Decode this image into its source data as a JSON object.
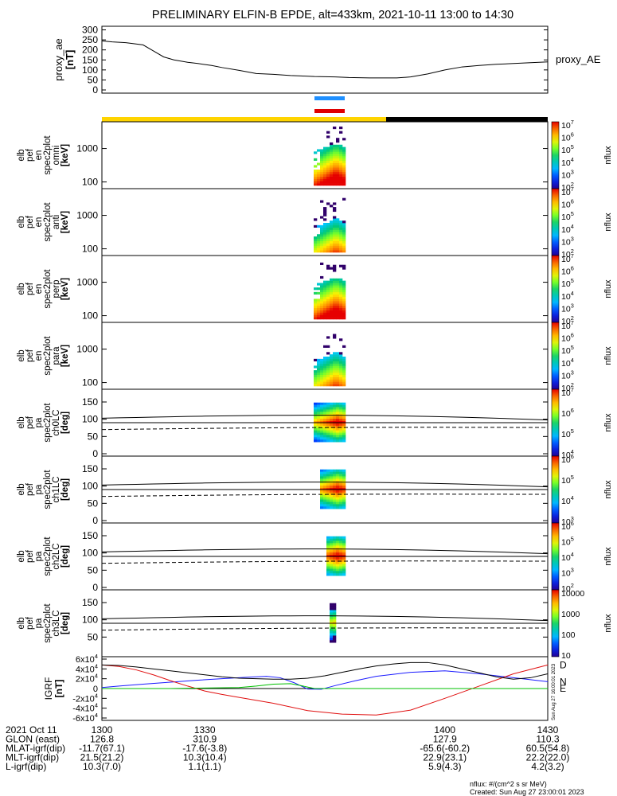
{
  "title": "PRELIMINARY ELFIN-B EPDE, alt=433km, 2021-10-11 13:00 to 14:30",
  "side_label_top": "proxy_AE",
  "colors": {
    "bar_yellow": "#ffd400",
    "bar_black": "#000000",
    "marker_blue": "#1e8fff",
    "marker_red": "#e00000",
    "trace_N": "#1a1aff",
    "trace_D": "#e01010",
    "trace_E": "#00c000"
  },
  "footer": {
    "rows": [
      {
        "label": "2021 Oct 11",
        "values": [
          "1300",
          "1330",
          "1400",
          "1430"
        ]
      },
      {
        "label": "GLON (east)",
        "values": [
          "126.8",
          "310.9",
          "127.9",
          "110.3"
        ]
      },
      {
        "label": "MLAT-igrf(dip)",
        "values": [
          "-11.7(67.1)",
          "-17.6(-3.8)",
          "-65.6(-60.2)",
          "60.5(54.8)"
        ]
      },
      {
        "label": "MLT-igrf(dip)",
        "values": [
          "21.5(21.2)",
          "10.3(10.4)",
          "22.9(23.1)",
          "22.2(22.0)"
        ]
      },
      {
        "label": "L-igrf(dip)",
        "values": [
          "10.3(7.0)",
          "1.1(1.1)",
          "5.9(4.3)",
          "4.2(3.2)"
        ]
      }
    ],
    "note1": "nflux: #/(cm^2 s sr MeV)",
    "note2": "Created: Sun Aug 27 23:00:01 2023",
    "side_stamp": "Sun Aug 27 16:00:01 2023"
  },
  "chart_data": [
    {
      "type": "line",
      "name": "proxy_ae",
      "ylabel": [
        "proxy_ae",
        "[nT]"
      ],
      "ylim": [
        0,
        310
      ],
      "yticks": [
        0,
        50,
        100,
        150,
        200,
        250,
        300
      ],
      "x": [
        1300,
        1303,
        1307,
        1312,
        1315,
        1318,
        1321,
        1325,
        1328,
        1332,
        1335,
        1340,
        1345,
        1350,
        1355,
        1358,
        1362,
        1368,
        1372,
        1375,
        1378,
        1382,
        1386,
        1390,
        1395,
        1400,
        1405,
        1410,
        1415,
        1420,
        1425,
        1430
      ],
      "y": [
        245,
        240,
        236,
        225,
        195,
        165,
        150,
        138,
        132,
        122,
        112,
        98,
        82,
        78,
        72,
        70,
        67,
        65,
        62,
        61,
        60,
        60,
        60,
        65,
        80,
        100,
        115,
        122,
        128,
        132,
        136,
        140
      ]
    },
    {
      "type": "heatmap",
      "name": "elb pef en spec2plot omni",
      "ylabel": [
        "elb",
        "pef",
        "en",
        "spec2plot",
        "omni",
        "[keV]"
      ],
      "yscale": "log",
      "ylim": [
        63,
        6300
      ],
      "yticks": [
        100,
        1000
      ],
      "colorbar": {
        "label": "nflux",
        "scale": "log",
        "ticks": [
          "10^2",
          "10^3",
          "10^4",
          "10^5",
          "10^6",
          "10^7"
        ]
      }
    },
    {
      "type": "heatmap",
      "name": "elb pef en spec2plot anti",
      "ylabel": [
        "elb",
        "pef",
        "en",
        "spec2plot",
        "anti",
        "[keV]"
      ],
      "yscale": "log",
      "ylim": [
        63,
        6300
      ],
      "yticks": [
        100,
        1000
      ],
      "colorbar": {
        "label": "nflux",
        "scale": "log",
        "ticks": [
          "10^2",
          "10^3",
          "10^4",
          "10^5",
          "10^6",
          "10^7"
        ]
      }
    },
    {
      "type": "heatmap",
      "name": "elb pef en spec2plot perp",
      "ylabel": [
        "elb",
        "pef",
        "en",
        "spec2plot",
        "perp",
        "[keV]"
      ],
      "yscale": "log",
      "ylim": [
        63,
        6300
      ],
      "yticks": [
        100,
        1000
      ],
      "colorbar": {
        "label": "nflux",
        "scale": "log",
        "ticks": [
          "10^2",
          "10^3",
          "10^4",
          "10^5",
          "10^6",
          "10^7"
        ]
      }
    },
    {
      "type": "heatmap",
      "name": "elb pef en spec2plot para",
      "ylabel": [
        "elb",
        "pef",
        "en",
        "spec2plot",
        "para",
        "[keV]"
      ],
      "yscale": "log",
      "ylim": [
        63,
        6300
      ],
      "yticks": [
        100,
        1000
      ],
      "colorbar": {
        "label": "nflux",
        "scale": "log",
        "ticks": [
          "10^2",
          "10^3",
          "10^4",
          "10^5",
          "10^6",
          "10^7"
        ]
      }
    },
    {
      "type": "heatmap",
      "name": "elb pef pa spec2plot ch0LC",
      "ylabel": [
        "elb",
        "pef",
        "pa",
        "spec2plot",
        "ch0LC",
        "[deg]"
      ],
      "ylim": [
        0,
        180
      ],
      "yticks": [
        0,
        50,
        100,
        150
      ],
      "colorbar": {
        "label": "nflux",
        "scale": "log",
        "ticks": [
          "10^4",
          "10^5",
          "10^6",
          "10^7"
        ]
      }
    },
    {
      "type": "heatmap",
      "name": "elb pef pa spec2plot ch1LC",
      "ylabel": [
        "elb",
        "pef",
        "pa",
        "spec2plot",
        "ch1LC",
        "[deg]"
      ],
      "ylim": [
        0,
        180
      ],
      "yticks": [
        0,
        50,
        100,
        150
      ],
      "colorbar": {
        "label": "nflux",
        "scale": "log",
        "ticks": [
          "10^3",
          "10^4",
          "10^5",
          "10^6"
        ]
      }
    },
    {
      "type": "heatmap",
      "name": "elb pef pa spec2plot ch2LC",
      "ylabel": [
        "elb",
        "pef",
        "pa",
        "spec2plot",
        "ch2LC",
        "[deg]"
      ],
      "ylim": [
        0,
        180
      ],
      "yticks": [
        0,
        50,
        100,
        150
      ],
      "colorbar": {
        "label": "nflux",
        "scale": "log",
        "ticks": [
          "10^2",
          "10^3",
          "10^4",
          "10^5",
          "10^6"
        ]
      }
    },
    {
      "type": "heatmap",
      "name": "elb pef pa spec2plot ch3LC",
      "ylabel": [
        "elb",
        "pef",
        "pa",
        "spec2plot",
        "ch3LC",
        "[deg]"
      ],
      "ylim": [
        0,
        180
      ],
      "yticks": [
        50,
        100,
        150
      ],
      "colorbar": {
        "label": "nflux",
        "scale": "log",
        "ticks": [
          "10",
          "100",
          "1000",
          "10000"
        ]
      }
    },
    {
      "type": "line",
      "name": "IGRF",
      "ylabel": [
        "IGRF",
        "[nT]"
      ],
      "ylim": [
        -60000,
        60000
      ],
      "yticks": [
        "-6x10^4",
        "-4x10^4",
        "-2x10^4",
        "0",
        "2x10^4",
        "4x10^4",
        "6x10^4"
      ],
      "series": [
        {
          "name": "N",
          "x": [
            1300,
            1305,
            1312,
            1320,
            1328,
            1335,
            1342,
            1348,
            1352,
            1356,
            1360,
            1364,
            1368,
            1374,
            1380,
            1390,
            1400,
            1410,
            1420,
            1430
          ],
          "y": [
            2000,
            5000,
            9000,
            13000,
            17000,
            20000,
            23000,
            25000,
            22000,
            12000,
            -1000,
            -1500,
            6000,
            16000,
            25000,
            33000,
            36000,
            30000,
            22000,
            14000
          ]
        },
        {
          "name": "D",
          "x": [
            1300,
            1305,
            1310,
            1315,
            1320,
            1325,
            1330,
            1335,
            1340,
            1350,
            1360,
            1370,
            1380,
            1390,
            1400,
            1410,
            1420,
            1430
          ],
          "y": [
            48000,
            45000,
            38000,
            28000,
            16000,
            5000,
            -5000,
            -12000,
            -18000,
            -30000,
            -45000,
            -52000,
            -54000,
            -44000,
            -20000,
            5000,
            30000,
            48000
          ]
        },
        {
          "name": "E",
          "x": [
            1300,
            1320,
            1340,
            1345,
            1350,
            1355,
            1358,
            1362,
            1368,
            1380,
            1400,
            1430
          ],
          "y": [
            0,
            0,
            2000,
            5000,
            9000,
            10000,
            6000,
            0,
            0,
            0,
            0,
            0
          ]
        },
        {
          "name": "",
          "x": [
            1300,
            1305,
            1310,
            1315,
            1320,
            1325,
            1330,
            1335,
            1340,
            1345,
            1350,
            1355,
            1360,
            1365,
            1370,
            1375,
            1380,
            1385,
            1390,
            1395,
            1400,
            1405,
            1410,
            1415,
            1420,
            1425,
            1430
          ],
          "y": [
            48000,
            47000,
            44000,
            40000,
            36000,
            32000,
            28000,
            24000,
            21000,
            20000,
            19000,
            19000,
            21000,
            26000,
            33000,
            40000,
            46000,
            50000,
            53000,
            53000,
            48000,
            40000,
            32000,
            24000,
            19000,
            22000,
            30000
          ]
        }
      ]
    }
  ]
}
